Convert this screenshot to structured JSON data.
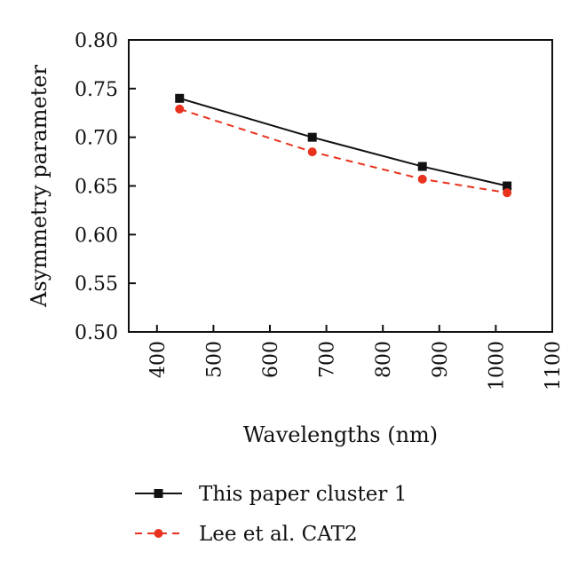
{
  "chart_data": {
    "type": "line",
    "xlabel": "Wavelengths (nm)",
    "ylabel": "Asymmetry parameter",
    "xlim": [
      350,
      1100
    ],
    "ylim": [
      0.5,
      0.8
    ],
    "xticks": [
      400,
      500,
      600,
      700,
      800,
      900,
      1000,
      1100
    ],
    "yticks": [
      0.5,
      0.55,
      0.6,
      0.65,
      0.7,
      0.75,
      0.8
    ],
    "xtick_labels": [
      "400",
      "500",
      "600",
      "700",
      "800",
      "900",
      "1000",
      "1100"
    ],
    "ytick_labels": [
      "0.50",
      "0.55",
      "0.60",
      "0.65",
      "0.70",
      "0.75",
      "0.80"
    ],
    "grid": false,
    "legend_position": "bottom",
    "series": [
      {
        "name": "This paper cluster 1",
        "color": "#111111",
        "line_style": "solid",
        "marker": "square",
        "x": [
          440,
          675,
          870,
          1020
        ],
        "y": [
          0.74,
          0.7,
          0.67,
          0.65
        ]
      },
      {
        "name": "Lee et al. CAT2",
        "color": "#e8321e",
        "line_style": "dashed",
        "marker": "circle",
        "x": [
          440,
          675,
          870,
          1020
        ],
        "y": [
          0.729,
          0.685,
          0.657,
          0.643
        ]
      }
    ]
  }
}
